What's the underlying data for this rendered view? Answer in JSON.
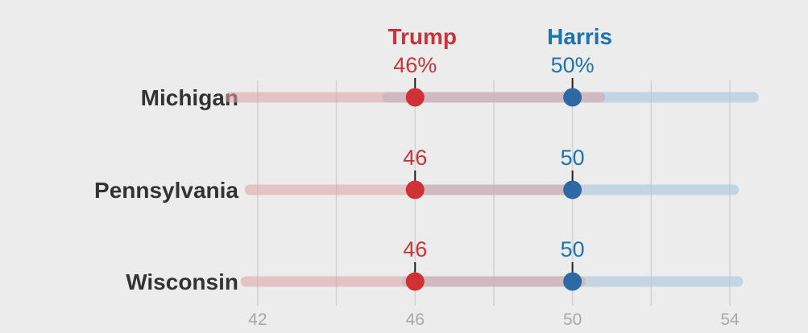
{
  "chart_data": {
    "type": "scatter",
    "title": "",
    "xlabel": "",
    "ylabel": "",
    "xlim": [
      40.6,
      55.0
    ],
    "x_ticks": [
      "42",
      "46",
      "50",
      "54"
    ],
    "grid": true,
    "colors": {
      "Trump": "#c9343c",
      "Harris": "#1f72b0",
      "Trump_dot": "#cf3135",
      "Harris_dot": "#2d6aa5"
    },
    "candidates": [
      {
        "name": "Trump",
        "top_label": "Trump"
      },
      {
        "name": "Harris",
        "top_label": "Harris"
      }
    ],
    "states": [
      {
        "name": "Michigan",
        "Trump": 46,
        "Trump_label": "46%",
        "Harris": 50,
        "Harris_label": "50%",
        "Trump_range": [
          41.3,
          50.7
        ],
        "Harris_range": [
          45.3,
          54.6
        ]
      },
      {
        "name": "Pennsylvania",
        "Trump": 46,
        "Trump_label": "46",
        "Harris": 50,
        "Harris_label": "50",
        "Trump_range": [
          41.8,
          50.1
        ],
        "Harris_range": [
          45.9,
          54.1
        ]
      },
      {
        "name": "Wisconsin",
        "Trump": 46,
        "Trump_label": "46",
        "Harris": 50,
        "Harris_label": "50",
        "Trump_range": [
          41.7,
          50.2
        ],
        "Harris_range": [
          45.8,
          54.2
        ]
      }
    ]
  }
}
